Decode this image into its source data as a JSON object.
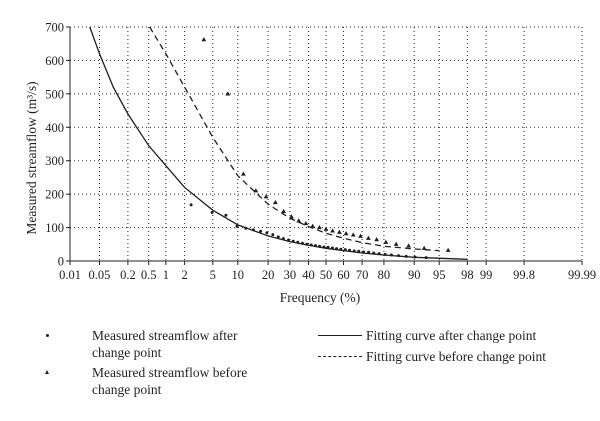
{
  "chart_data": {
    "type": "scatter",
    "xlabel": "Frequency (%)",
    "ylabel": "Measured streamflow (m³/s)",
    "x_scale": "normal-probability",
    "x_ticks": [
      0.01,
      0.05,
      0.2,
      0.5,
      1,
      2,
      5,
      10,
      20,
      30,
      40,
      50,
      60,
      70,
      80,
      90,
      95,
      98,
      99,
      99.8,
      99.99
    ],
    "x_tick_labels": [
      "0.01",
      "0.05",
      "0.2",
      "0.5",
      "1",
      "2",
      "5",
      "10",
      "20",
      "30",
      "40",
      "50",
      "60",
      "70",
      "80",
      "90",
      "95",
      "98",
      "99",
      "99.8",
      "99.99"
    ],
    "y_ticks": [
      0,
      100,
      200,
      300,
      400,
      500,
      600,
      700
    ],
    "y_tick_labels": [
      "0",
      "100",
      "200",
      "300",
      "400",
      "500",
      "600",
      "700"
    ],
    "xlim": [
      0.01,
      99.99
    ],
    "ylim": [
      0,
      700
    ],
    "grid": "dotted",
    "legend_position": "bottom",
    "series": [
      {
        "name": "Measured streamflow after change point",
        "kind": "points",
        "marker": "dot",
        "points": [
          [
            2.5,
            168
          ],
          [
            4.9,
            145
          ],
          [
            7.3,
            137
          ],
          [
            9.8,
            104
          ],
          [
            12.2,
            98
          ],
          [
            14.6,
            93
          ],
          [
            17.1,
            89
          ],
          [
            19.5,
            84
          ],
          [
            22.0,
            79
          ],
          [
            24.4,
            72
          ],
          [
            26.8,
            67
          ],
          [
            29.3,
            63
          ],
          [
            31.7,
            59
          ],
          [
            34.1,
            56
          ],
          [
            36.6,
            53
          ],
          [
            39.0,
            50
          ],
          [
            41.5,
            48
          ],
          [
            43.9,
            46
          ],
          [
            46.3,
            44
          ],
          [
            48.8,
            42
          ],
          [
            51.2,
            41
          ],
          [
            53.7,
            39
          ],
          [
            56.1,
            37
          ],
          [
            58.5,
            35
          ],
          [
            61.0,
            34
          ],
          [
            63.4,
            32
          ],
          [
            65.9,
            30
          ],
          [
            68.3,
            29
          ],
          [
            70.7,
            27
          ],
          [
            73.2,
            26
          ],
          [
            75.6,
            24
          ],
          [
            78.0,
            22
          ],
          [
            80.5,
            20
          ],
          [
            82.9,
            18
          ],
          [
            85.4,
            16
          ],
          [
            87.8,
            14
          ],
          [
            90.2,
            12
          ],
          [
            92.7,
            10
          ]
        ]
      },
      {
        "name": "Measured streamflow before change point",
        "kind": "points",
        "marker": "triangle",
        "points": [
          [
            3.8,
            662
          ],
          [
            7.7,
            500
          ],
          [
            11.5,
            260
          ],
          [
            15.4,
            210
          ],
          [
            19.2,
            192
          ],
          [
            23.1,
            175
          ],
          [
            26.9,
            148
          ],
          [
            30.8,
            132
          ],
          [
            34.6,
            120
          ],
          [
            38.5,
            112
          ],
          [
            42.3,
            104
          ],
          [
            46.2,
            100
          ],
          [
            50.0,
            95
          ],
          [
            53.8,
            90
          ],
          [
            57.7,
            86
          ],
          [
            61.5,
            82
          ],
          [
            65.4,
            78
          ],
          [
            69.2,
            74
          ],
          [
            73.1,
            68
          ],
          [
            76.9,
            64
          ],
          [
            80.8,
            56
          ],
          [
            84.6,
            50
          ],
          [
            88.5,
            45
          ],
          [
            92.3,
            38
          ],
          [
            96.2,
            32
          ]
        ]
      },
      {
        "name": "Fitting curve after change point",
        "kind": "line",
        "style": "solid",
        "points": [
          [
            0.03,
            700
          ],
          [
            0.05,
            620
          ],
          [
            0.1,
            520
          ],
          [
            0.2,
            440
          ],
          [
            0.5,
            345
          ],
          [
            1,
            285
          ],
          [
            2,
            220
          ],
          [
            5,
            152
          ],
          [
            10,
            108
          ],
          [
            20,
            75
          ],
          [
            30,
            58
          ],
          [
            40,
            47
          ],
          [
            50,
            38
          ],
          [
            60,
            31
          ],
          [
            70,
            24
          ],
          [
            80,
            18
          ],
          [
            90,
            11
          ],
          [
            98,
            5
          ]
        ]
      },
      {
        "name": "Fitting curve before change point",
        "kind": "line",
        "style": "dashed",
        "points": [
          [
            0.52,
            700
          ],
          [
            1,
            620
          ],
          [
            2,
            520
          ],
          [
            5,
            370
          ],
          [
            10,
            255
          ],
          [
            20,
            170
          ],
          [
            30,
            128
          ],
          [
            40,
            103
          ],
          [
            50,
            83
          ],
          [
            60,
            68
          ],
          [
            70,
            55
          ],
          [
            80,
            44
          ],
          [
            90,
            36
          ],
          [
            95,
            31
          ]
        ]
      }
    ]
  }
}
